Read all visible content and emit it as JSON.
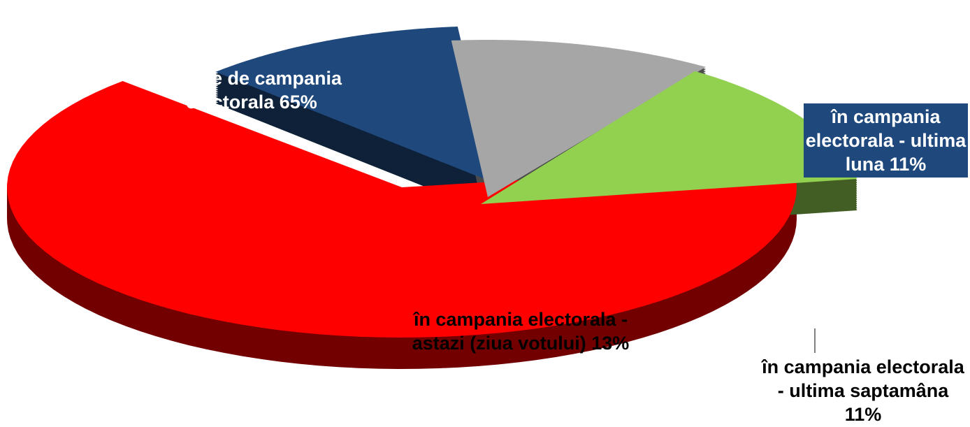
{
  "chart_data": {
    "type": "pie",
    "categories": [
      "Înainte de campania electorala",
      "în campania electorala - ultima luna",
      "în campania electorala - ultima saptamâna",
      "în campania electorala - astazi (ziua votului)"
    ],
    "values": [
      65,
      11,
      11,
      13
    ],
    "value_labels": [
      "65%",
      "11%",
      "11%",
      "13%"
    ],
    "colors": [
      "#ff0000",
      "#1f497d",
      "#a6a6a6",
      "#92d050"
    ]
  }
}
